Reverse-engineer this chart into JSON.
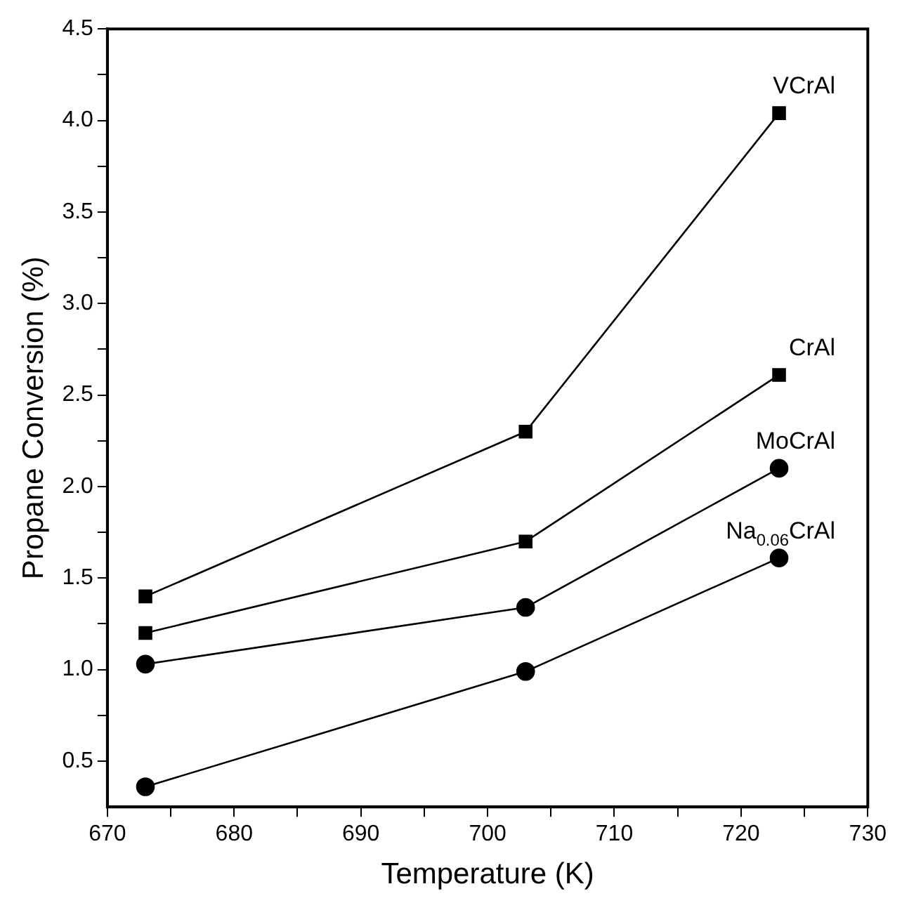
{
  "chart_data": {
    "type": "line",
    "xlabel": "Temperature (K)",
    "ylabel": "Propane Conversion (%)",
    "x": [
      673,
      703,
      723
    ],
    "series": [
      {
        "name": "VCrAl",
        "color": "#000000",
        "marker": "square",
        "values": [
          1.4,
          2.3,
          4.04
        ]
      },
      {
        "name": "CrAl",
        "color": "#000000",
        "marker": "square",
        "values": [
          1.2,
          1.7,
          2.61
        ]
      },
      {
        "name": "MoCrAl",
        "color": "#000000",
        "marker": "circle",
        "values": [
          1.03,
          1.34,
          2.1
        ]
      },
      {
        "name": "Na$_{0.06}$CrAl",
        "color": "#000000",
        "marker": "circle",
        "values": [
          0.36,
          0.99,
          1.61
        ]
      }
    ],
    "xlim": [
      670,
      730
    ],
    "xticks": [
      670,
      {
        "value": 675,
        "label": null
      },
      680,
      {
        "value": 685,
        "label": null
      },
      690,
      {
        "value": 695,
        "label": null
      },
      700,
      {
        "value": 705,
        "label": null
      },
      710,
      {
        "value": 715,
        "label": null
      },
      720,
      {
        "value": 725,
        "label": null
      },
      730
    ],
    "ylim": [
      0.25,
      4.5
    ],
    "yticks": [
      {
        "value": 0.5,
        "label": "0.5"
      },
      {
        "value": 0.75,
        "label": null
      },
      {
        "value": 1,
        "label": "1.0"
      },
      {
        "value": 1.25,
        "label": null
      },
      {
        "value": 1.5,
        "label": "1.5"
      },
      {
        "value": 1.75,
        "label": null
      },
      {
        "value": 2,
        "label": "2.0"
      },
      {
        "value": 2.25,
        "label": null
      },
      {
        "value": 2.5,
        "label": "2.5"
      },
      {
        "value": 2.75,
        "label": null
      },
      {
        "value": 3,
        "label": "3.0"
      },
      {
        "value": 3.25,
        "label": null
      },
      {
        "value": 3.5,
        "label": "3.5"
      },
      {
        "value": 3.75,
        "label": null
      },
      {
        "value": 4,
        "label": "4.0"
      },
      {
        "value": 4.25,
        "label": null
      },
      {
        "value": 4.5,
        "label": "4.5"
      }
    ],
    "grid": false,
    "legend": false,
    "line_style": "solid"
  }
}
